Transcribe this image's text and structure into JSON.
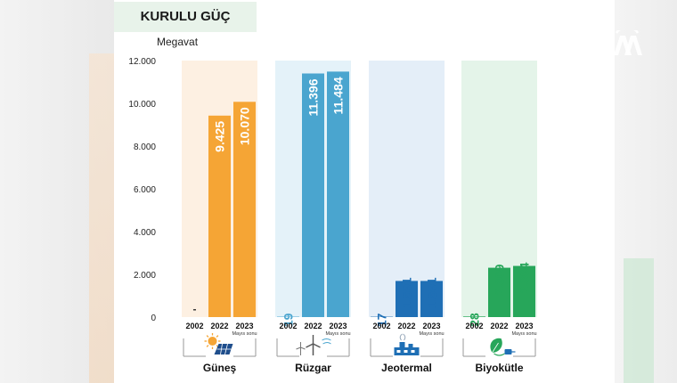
{
  "header": {
    "title": "KURULU GÜÇ",
    "unit": "Megavat",
    "logo_icon": "aa-logo-icon"
  },
  "chart_data": {
    "type": "bar",
    "ylim": [
      0,
      12000
    ],
    "yticks": [
      "0",
      "2.000",
      "4.000",
      "6.000",
      "8.000",
      "10.000",
      "12.000"
    ],
    "ytick_values": [
      0,
      2000,
      4000,
      6000,
      8000,
      10000,
      12000
    ],
    "year_labels": [
      "2002",
      "2022",
      "2023"
    ],
    "year_sublabel": "Mayıs sonu",
    "groups": [
      {
        "name": "Güneş",
        "icon": "solar-panel-icon",
        "color": "#f5a535",
        "bg": "#fdf0e2",
        "values": [
          0,
          9425,
          10070
        ],
        "labels": [
          "-",
          "9.425",
          "10.070"
        ]
      },
      {
        "name": "Rüzgar",
        "icon": "wind-turbine-icon",
        "color": "#4aa5cf",
        "bg": "#e4f2f9",
        "values": [
          19,
          11396,
          11484
        ],
        "labels": [
          "19",
          "11.396",
          "11.484"
        ]
      },
      {
        "name": "Jeotermal",
        "icon": "geothermal-plant-icon",
        "color": "#1f6fb5",
        "bg": "#e4eef8",
        "values": [
          17,
          1691,
          1691
        ],
        "labels": [
          "17",
          "1.691",
          "1.691"
        ]
      },
      {
        "name": "Biyokütle",
        "icon": "biomass-plug-icon",
        "color": "#27a65a",
        "bg": "#e4f4e9",
        "values": [
          28,
          2309,
          2394
        ],
        "labels": [
          "28",
          "2.309",
          "2.394"
        ]
      }
    ]
  }
}
